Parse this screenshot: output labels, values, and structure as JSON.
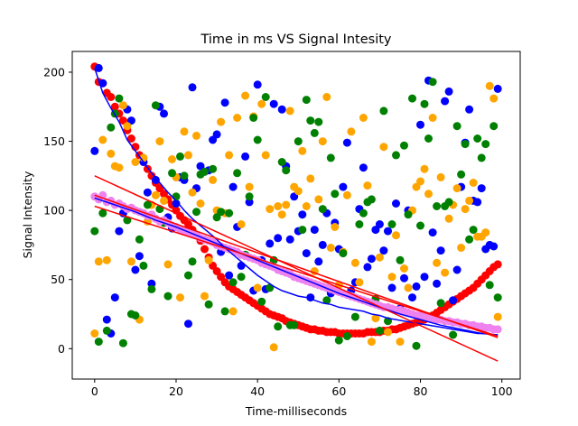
{
  "chart_data": {
    "type": "scatter",
    "title": "Time in ms VS Signal Intesity",
    "xlabel": "Time-milliseconds",
    "ylabel": "Signal Intensity",
    "xlim": [
      -5.5,
      104.5
    ],
    "ylim": [
      -22,
      215
    ],
    "xticks": [
      0,
      20,
      40,
      60,
      80,
      100
    ],
    "yticks": [
      0,
      50,
      100,
      150,
      200
    ],
    "grid": false,
    "legend": "none",
    "series": [
      {
        "color": "#ff0000",
        "marker": "point",
        "x": [
          0,
          1,
          2,
          3,
          4,
          5,
          6,
          7,
          8,
          9,
          10,
          11,
          12,
          13,
          14,
          15,
          16,
          17,
          18,
          19,
          20,
          21,
          22,
          23,
          24,
          25,
          26,
          27,
          28,
          29,
          30,
          31,
          32,
          33,
          34,
          35,
          36,
          37,
          38,
          39,
          40,
          41,
          42,
          43,
          44,
          45,
          46,
          47,
          48,
          49,
          50,
          51,
          52,
          53,
          54,
          55,
          56,
          57,
          58,
          59,
          60,
          61,
          62,
          63,
          64,
          65,
          66,
          67,
          68,
          69,
          70,
          71,
          72,
          73,
          74,
          75,
          76,
          77,
          78,
          79,
          80,
          81,
          82,
          83,
          84,
          85,
          86,
          87,
          88,
          89,
          90,
          91,
          92,
          93,
          94,
          95,
          96,
          97,
          98,
          99
        ],
        "y": [
          204,
          193,
          192,
          185,
          182,
          175,
          170,
          165,
          158,
          152,
          146,
          140,
          135,
          130,
          125,
          120,
          116,
          112,
          108,
          104,
          100,
          96,
          93,
          90,
          86,
          82,
          78,
          72,
          66,
          60,
          56,
          52,
          48,
          45,
          43,
          41,
          39,
          37,
          35,
          33,
          31,
          29,
          27,
          25,
          24,
          23,
          22,
          20,
          19,
          18,
          17,
          16,
          15,
          14,
          14,
          13,
          13,
          12,
          12,
          12,
          11,
          11,
          11,
          11,
          11,
          11,
          11,
          12,
          12,
          12,
          12,
          13,
          13,
          14,
          14,
          15,
          16,
          17,
          18,
          19,
          20,
          21,
          22,
          24,
          26,
          28,
          30,
          32,
          34,
          36,
          38,
          40,
          42,
          44,
          47,
          50,
          53,
          56,
          59,
          61
        ]
      },
      {
        "color": "#0000ff",
        "marker": "point",
        "x": [
          0,
          1,
          2,
          3,
          4,
          5,
          6,
          7,
          8,
          9,
          10,
          11,
          12,
          13,
          14,
          15,
          16,
          17,
          18,
          19,
          20,
          21,
          22,
          23,
          24,
          25,
          26,
          27,
          28,
          29,
          30,
          31,
          32,
          33,
          34,
          35,
          36,
          37,
          38,
          39,
          40,
          41,
          42,
          43,
          44,
          45,
          46,
          47,
          48,
          49,
          50,
          51,
          52,
          53,
          54,
          55,
          56,
          57,
          58,
          59,
          60,
          61,
          62,
          63,
          64,
          65,
          66,
          67,
          68,
          69,
          70,
          71,
          72,
          73,
          74,
          75,
          76,
          77,
          78,
          79,
          80,
          81,
          82,
          83,
          84,
          85,
          86,
          87,
          88,
          89,
          90,
          91,
          92,
          93,
          94,
          95,
          96,
          97,
          98,
          99
        ],
        "y": [
          143,
          203,
          192,
          21,
          11,
          37,
          85,
          98,
          173,
          165,
          57,
          67,
          135,
          113,
          47,
          122,
          175,
          170,
          95,
          87,
          105,
          124,
          122,
          18,
          189,
          116,
          132,
          128,
          129,
          151,
          155,
          70,
          178,
          53,
          117,
          88,
          60,
          139,
          106,
          42,
          191,
          64,
          43,
          76,
          177,
          80,
          173,
          132,
          79,
          110,
          85,
          97,
          69,
          37,
          86,
          63,
          75,
          98,
          40,
          91,
          72,
          117,
          149,
          42,
          48,
          101,
          131,
          59,
          65,
          86,
          90,
          71,
          85,
          44,
          105,
          29,
          51,
          100,
          37,
          45,
          162,
          52,
          194,
          84,
          47,
          71,
          179,
          186,
          35,
          57,
          117,
          149,
          173,
          107,
          106,
          116,
          72,
          75,
          74,
          188
        ]
      },
      {
        "color": "#ffa500",
        "marker": "point",
        "x": [
          0,
          1,
          2,
          3,
          4,
          5,
          6,
          7,
          8,
          9,
          10,
          11,
          12,
          13,
          14,
          15,
          16,
          17,
          18,
          19,
          20,
          21,
          22,
          23,
          24,
          25,
          26,
          27,
          28,
          29,
          30,
          31,
          32,
          33,
          34,
          35,
          36,
          37,
          38,
          39,
          40,
          41,
          42,
          43,
          44,
          45,
          46,
          47,
          48,
          49,
          50,
          51,
          52,
          53,
          54,
          55,
          56,
          57,
          58,
          59,
          60,
          61,
          62,
          63,
          64,
          65,
          66,
          67,
          68,
          69,
          70,
          71,
          72,
          73,
          74,
          75,
          76,
          77,
          78,
          79,
          80,
          81,
          82,
          83,
          84,
          85,
          86,
          87,
          88,
          89,
          90,
          91,
          92,
          93,
          94,
          95,
          96,
          97,
          98,
          99
        ],
        "y": [
          11,
          63,
          151,
          64,
          141,
          132,
          131,
          176,
          161,
          63,
          135,
          21,
          138,
          92,
          104,
          111,
          150,
          107,
          61,
          137,
          124,
          37,
          157,
          140,
          113,
          154,
          105,
          38,
          64,
          122,
          100,
          164,
          98,
          140,
          27,
          167,
          90,
          183,
          117,
          168,
          44,
          177,
          140,
          101,
          1,
          103,
          97,
          104,
          172,
          117,
          114,
          143,
          103,
          123,
          56,
          108,
          150,
          182,
          73,
          88,
          46,
          70,
          111,
          157,
          62,
          48,
          167,
          118,
          5,
          22,
          66,
          146,
          12,
          52,
          82,
          5,
          58,
          44,
          100,
          117,
          121,
          130,
          112,
          167,
          62,
          124,
          55,
          94,
          104,
          116,
          73,
          101,
          107,
          120,
          81,
          81,
          84,
          190,
          181,
          23
        ]
      },
      {
        "color": "#008000",
        "marker": "point",
        "x": [
          0,
          1,
          2,
          3,
          4,
          5,
          6,
          7,
          8,
          9,
          10,
          11,
          12,
          13,
          14,
          15,
          16,
          17,
          18,
          19,
          20,
          21,
          22,
          23,
          24,
          25,
          26,
          27,
          28,
          29,
          30,
          31,
          32,
          33,
          34,
          35,
          36,
          37,
          38,
          39,
          40,
          41,
          42,
          43,
          44,
          45,
          46,
          47,
          48,
          49,
          50,
          51,
          52,
          53,
          54,
          55,
          56,
          57,
          58,
          59,
          60,
          61,
          62,
          63,
          64,
          65,
          66,
          67,
          68,
          69,
          70,
          71,
          72,
          73,
          74,
          75,
          76,
          77,
          78,
          79,
          80,
          81,
          82,
          83,
          84,
          85,
          86,
          87,
          88,
          89,
          90,
          91,
          92,
          93,
          94,
          95,
          96,
          97,
          98,
          99
        ],
        "y": [
          85,
          5,
          98,
          13,
          160,
          170,
          181,
          4,
          93,
          25,
          24,
          79,
          60,
          104,
          43,
          176,
          101,
          91,
          38,
          127,
          110,
          139,
          125,
          53,
          63,
          99,
          126,
          128,
          32,
          130,
          95,
          99,
          27,
          98,
          48,
          127,
          52,
          68,
          110,
          167,
          151,
          34,
          182,
          44,
          64,
          16,
          135,
          129,
          17,
          17,
          150,
          86,
          180,
          165,
          156,
          164,
          101,
          35,
          138,
          112,
          6,
          69,
          9,
          38,
          23,
          90,
          98,
          106,
          108,
          36,
          13,
          172,
          20,
          90,
          140,
          64,
          147,
          97,
          181,
          2,
          89,
          177,
          152,
          193,
          103,
          33,
          103,
          106,
          10,
          161,
          126,
          148,
          79,
          86,
          152,
          138,
          148,
          46,
          161,
          37
        ]
      },
      {
        "color": "#ee82ee",
        "marker": "point",
        "x": [
          0,
          1,
          2,
          3,
          4,
          5,
          6,
          7,
          8,
          9,
          10,
          11,
          12,
          13,
          14,
          15,
          16,
          17,
          18,
          19,
          20,
          21,
          22,
          23,
          24,
          25,
          26,
          27,
          28,
          29,
          30,
          31,
          32,
          33,
          34,
          35,
          36,
          37,
          38,
          39,
          40,
          41,
          42,
          43,
          44,
          45,
          46,
          47,
          48,
          49,
          50,
          51,
          52,
          53,
          54,
          55,
          56,
          57,
          58,
          59,
          60,
          61,
          62,
          63,
          64,
          65,
          66,
          67,
          68,
          69,
          70,
          71,
          72,
          73,
          74,
          75,
          76,
          77,
          78,
          79,
          80,
          81,
          82,
          83,
          84,
          85,
          86,
          87,
          88,
          89,
          90,
          91,
          92,
          93,
          94,
          95,
          96,
          97,
          98,
          99
        ],
        "y": [
          110,
          108,
          111,
          106,
          107,
          104,
          105,
          103,
          101,
          102,
          100,
          99,
          98,
          96,
          97,
          94,
          92,
          93,
          91,
          89,
          88,
          86,
          85,
          84,
          83,
          82,
          80,
          79,
          78,
          77,
          75,
          74,
          73,
          72,
          71,
          70,
          68,
          67,
          66,
          65,
          64,
          62,
          61,
          60,
          59,
          57,
          56,
          55,
          54,
          52,
          51,
          50,
          49,
          48,
          47,
          46,
          45,
          44,
          43,
          42,
          41,
          40,
          39,
          38,
          37,
          36,
          35,
          34,
          33,
          32,
          31,
          30,
          30,
          29,
          28,
          28,
          27,
          26,
          25,
          24,
          24,
          23,
          22,
          22,
          21,
          21,
          20,
          20,
          19,
          19,
          18,
          18,
          17,
          17,
          16,
          16,
          15,
          15,
          14,
          14
        ]
      },
      {
        "color": "#0000ff",
        "marker": "line",
        "x": [
          0,
          2,
          4,
          6,
          8,
          10,
          12,
          14,
          16,
          18,
          20,
          22,
          24,
          26,
          28,
          30,
          32,
          34,
          36,
          38,
          40,
          42,
          44,
          46,
          48,
          50,
          52,
          54,
          56,
          58,
          60,
          62,
          64,
          66,
          68,
          70,
          72,
          74,
          76,
          78,
          80,
          82,
          84,
          86,
          88,
          90,
          92,
          94,
          96,
          98,
          99
        ],
        "y": [
          203,
          185,
          174,
          164,
          151,
          143,
          135,
          127,
          120,
          113,
          107,
          100,
          94,
          89,
          84,
          79,
          73,
          68,
          63,
          58,
          53,
          49,
          45,
          42,
          40,
          38,
          37,
          35,
          33,
          32,
          30,
          29,
          28,
          27,
          25,
          24,
          22,
          21,
          20,
          19,
          18,
          17,
          16,
          15,
          14,
          13,
          12,
          11,
          11,
          10,
          10
        ]
      },
      {
        "color": "#0000ff",
        "marker": "line",
        "x": [
          0,
          5,
          10,
          15,
          20,
          25,
          30,
          35,
          40,
          45,
          50,
          55,
          60,
          65,
          70,
          75,
          80,
          85,
          90,
          95,
          99
        ],
        "y": [
          109,
          104,
          99,
          93,
          88,
          82,
          76,
          70,
          64,
          58,
          52,
          46,
          40,
          35,
          30,
          25,
          21,
          17,
          14,
          11,
          10
        ]
      },
      {
        "color": "#ff0000",
        "marker": "line",
        "x": [
          0,
          99
        ],
        "y": [
          125,
          -9
        ]
      },
      {
        "color": "#ff0000",
        "marker": "line",
        "x": [
          0,
          99
        ],
        "y": [
          103,
          9
        ]
      },
      {
        "color": "#ff0000",
        "marker": "line",
        "x": [
          0,
          99
        ],
        "y": [
          111,
          8
        ]
      }
    ]
  }
}
